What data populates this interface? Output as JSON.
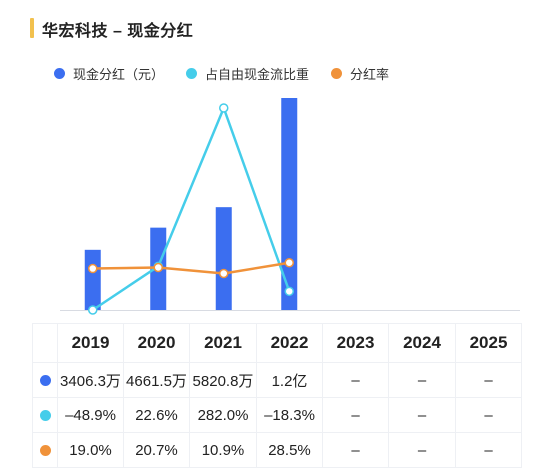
{
  "header": {
    "title": "华宏科技 – 现金分红"
  },
  "legend": [
    {
      "label": "现金分红（元）",
      "color": "#3b6ef0"
    },
    {
      "label": "占自由现金流比重",
      "color": "#45cdea"
    },
    {
      "label": "分红率",
      "color": "#f0923a"
    }
  ],
  "chart_data": {
    "type": "bar",
    "categories": [
      "2019",
      "2020",
      "2021",
      "2022",
      "2023",
      "2024",
      "2025"
    ],
    "series": [
      {
        "name": "现金分红（元）",
        "type": "bar",
        "color": "#3b6ef0",
        "values": [
          34063000,
          46615000,
          58208000,
          120000000,
          null,
          null,
          null
        ]
      },
      {
        "name": "占自由现金流比重",
        "type": "line",
        "color": "#45cdea",
        "unit": "%",
        "values": [
          -48.9,
          22.6,
          282.0,
          -18.3,
          null,
          null,
          null
        ]
      },
      {
        "name": "分红率",
        "type": "line",
        "color": "#f0923a",
        "unit": "%",
        "values": [
          19.0,
          20.7,
          10.9,
          28.5,
          null,
          null,
          null
        ]
      }
    ]
  },
  "table": {
    "years": [
      "2019",
      "2020",
      "2021",
      "2022",
      "2023",
      "2024",
      "2025"
    ],
    "rows": [
      {
        "color": "#3b6ef0",
        "cells": [
          "3406.3万",
          "4661.5万",
          "5820.8万",
          "1.2亿",
          "–",
          "–",
          "–"
        ]
      },
      {
        "color": "#45cdea",
        "cells": [
          "–48.9%",
          "22.6%",
          "282.0%",
          "–18.3%",
          "–",
          "–",
          "–"
        ]
      },
      {
        "color": "#f0923a",
        "cells": [
          "19.0%",
          "20.7%",
          "10.9%",
          "28.5%",
          "–",
          "–",
          "–"
        ]
      }
    ]
  }
}
